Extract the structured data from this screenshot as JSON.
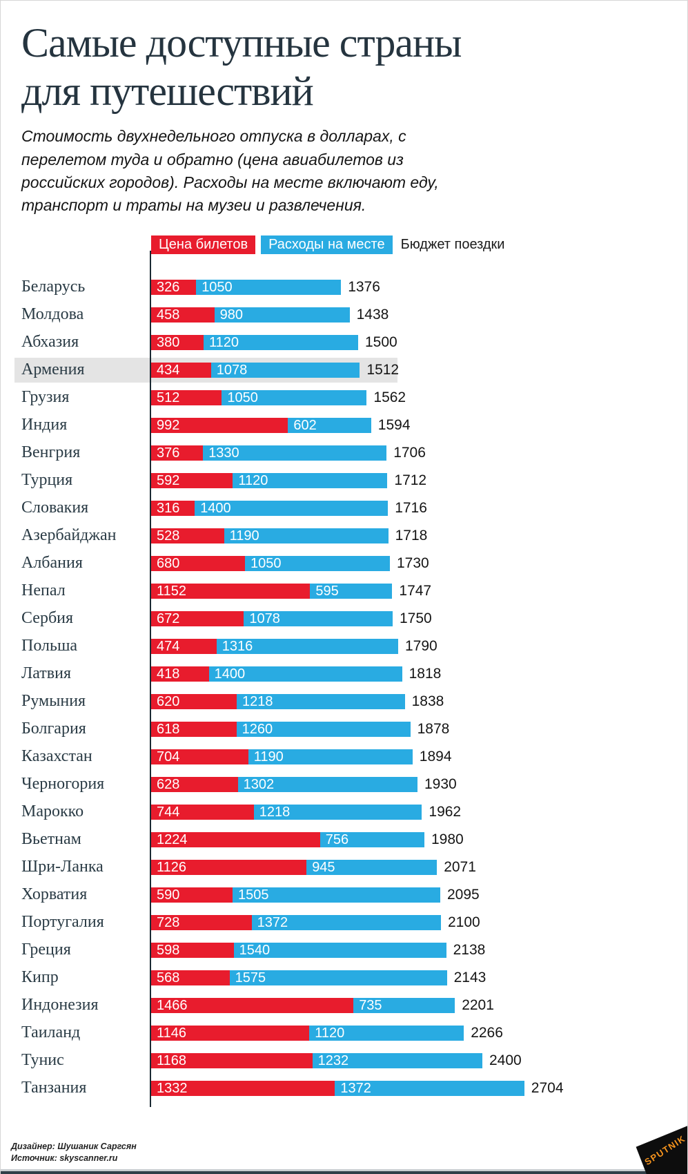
{
  "header": {
    "title": "Самые доступные страны для путешествий",
    "subtitle": "Стоимость двухнедельного отпуска в долларах, с перелетом туда и обратно (цена авиабилетов из российских городов). Расходы на месте включают еду, транспорт и траты на музеи и развлечения."
  },
  "legend": {
    "tickets": "Цена билетов",
    "on_site": "Расходы на месте",
    "budget": "Бюджет поездки"
  },
  "colors": {
    "tickets_red": "#e81c2d",
    "on_site_blue": "#29abe2",
    "highlight_gray": "#e4e4e4",
    "title_dark": "#25343f",
    "logo_orange": "#f7941d"
  },
  "footer": {
    "designer": "Дизайнер: Шушаник Саргсян",
    "source": "Источник: skyscanner.ru",
    "logo_text": "SPUTNIK"
  },
  "chart_data": {
    "type": "bar",
    "orientation": "horizontal",
    "stacked": true,
    "grid": false,
    "legend_position": "top",
    "title": "Самые доступные страны для путешествий",
    "value_unit": "USD",
    "highlighted_category": "Армения",
    "xlim": [
      0,
      2704
    ],
    "categories": [
      "Беларусь",
      "Молдова",
      "Абхазия",
      "Армения",
      "Грузия",
      "Индия",
      "Венгрия",
      "Турция",
      "Словакия",
      "Азербайджан",
      "Албания",
      "Непал",
      "Сербия",
      "Польша",
      "Латвия",
      "Румыния",
      "Болгария",
      "Казахстан",
      "Черногория",
      "Марокко",
      "Вьетнам",
      "Шри-Ланка",
      "Хорватия",
      "Португалия",
      "Греция",
      "Кипр",
      "Индонезия",
      "Таиланд",
      "Тунис",
      "Танзания"
    ],
    "series": [
      {
        "name": "Цена билетов",
        "values": [
          326,
          458,
          380,
          434,
          512,
          992,
          376,
          592,
          316,
          528,
          680,
          1152,
          672,
          474,
          418,
          620,
          618,
          704,
          628,
          744,
          1224,
          1126,
          590,
          728,
          598,
          568,
          1466,
          1146,
          1168,
          1332
        ]
      },
      {
        "name": "Расходы на месте",
        "values": [
          1050,
          980,
          1120,
          1078,
          1050,
          602,
          1330,
          1120,
          1400,
          1190,
          1050,
          595,
          1078,
          1316,
          1400,
          1218,
          1260,
          1190,
          1302,
          1218,
          756,
          945,
          1505,
          1372,
          1540,
          1575,
          735,
          1120,
          1232,
          1372
        ]
      }
    ],
    "totals": [
      1376,
      1438,
      1500,
      1512,
      1562,
      1594,
      1706,
      1712,
      1716,
      1718,
      1730,
      1747,
      1750,
      1790,
      1818,
      1838,
      1878,
      1894,
      1930,
      1962,
      1980,
      2071,
      2095,
      2100,
      2138,
      2143,
      2201,
      2266,
      2400,
      2704
    ],
    "totals_label": "Бюджет поездки"
  }
}
